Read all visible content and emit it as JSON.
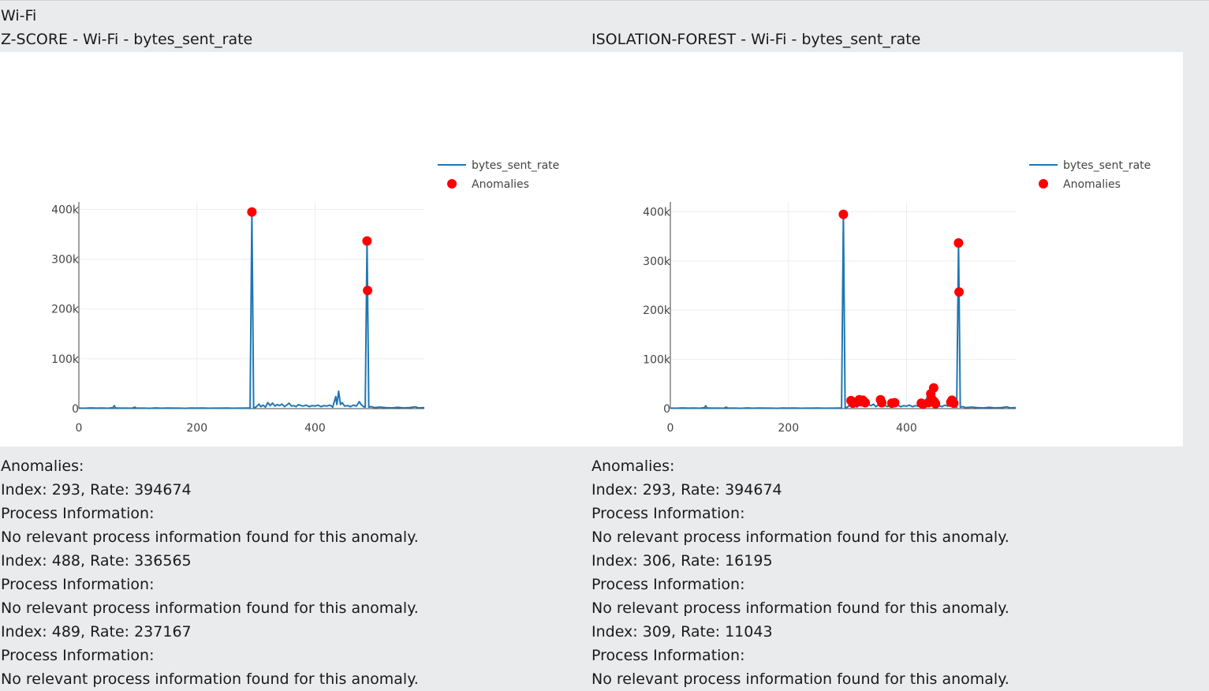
{
  "page": {
    "heading": "Wi-Fi"
  },
  "panels": [
    {
      "id": "zscore",
      "title": "Z-SCORE - Wi-Fi - bytes_sent_rate",
      "info": {
        "anomalies_label": "Anomalies:",
        "entries": [
          {
            "index_rate": "Index: 293, Rate: 394674",
            "process_label": "Process Information:",
            "process_text": "No relevant process information found for this anomaly."
          },
          {
            "index_rate": "Index: 488, Rate: 336565",
            "process_label": "Process Information:",
            "process_text": "No relevant process information found for this anomaly."
          },
          {
            "index_rate": "Index: 489, Rate: 237167",
            "process_label": "Process Information:",
            "process_text": "No relevant process information found for this anomaly."
          }
        ]
      }
    },
    {
      "id": "iforest",
      "title": "ISOLATION-FOREST - Wi-Fi - bytes_sent_rate",
      "info": {
        "anomalies_label": "Anomalies:",
        "entries": [
          {
            "index_rate": "Index: 293, Rate: 394674",
            "process_label": "Process Information:",
            "process_text": "No relevant process information found for this anomaly."
          },
          {
            "index_rate": "Index: 306, Rate: 16195",
            "process_label": "Process Information:",
            "process_text": "No relevant process information found for this anomaly."
          },
          {
            "index_rate": "Index: 309, Rate: 11043",
            "process_label": "Process Information:",
            "process_text": "No relevant process information found for this anomaly."
          }
        ]
      }
    }
  ],
  "chart_data": [
    {
      "type": "line",
      "xlim": [
        0,
        585
      ],
      "ylim": [
        0,
        415000
      ],
      "x_ticks": [
        0,
        200,
        400
      ],
      "x_tick_labels": [
        "0",
        "200",
        "400"
      ],
      "y_ticks": [
        0,
        100000,
        200000,
        300000,
        400000
      ],
      "y_tick_labels": [
        "0",
        "100k",
        "200k",
        "300k",
        "400k"
      ],
      "grid": true,
      "legend_position": "right-top",
      "series": [
        {
          "name": "bytes_sent_rate",
          "type": "line",
          "color": "#1f77b4",
          "points": [
            [
              0,
              1000
            ],
            [
              10,
              800
            ],
            [
              20,
              1500
            ],
            [
              30,
              900
            ],
            [
              40,
              1200
            ],
            [
              50,
              800
            ],
            [
              58,
              2000
            ],
            [
              60,
              6000
            ],
            [
              62,
              1500
            ],
            [
              70,
              900
            ],
            [
              80,
              1000
            ],
            [
              90,
              800
            ],
            [
              95,
              3000
            ],
            [
              97,
              900
            ],
            [
              110,
              1000
            ],
            [
              120,
              700
            ],
            [
              130,
              1500
            ],
            [
              140,
              800
            ],
            [
              150,
              1200
            ],
            [
              160,
              900
            ],
            [
              170,
              1000
            ],
            [
              180,
              700
            ],
            [
              190,
              1100
            ],
            [
              200,
              900
            ],
            [
              210,
              1300
            ],
            [
              220,
              800
            ],
            [
              230,
              1000
            ],
            [
              240,
              900
            ],
            [
              250,
              1200
            ],
            [
              260,
              800
            ],
            [
              270,
              1000
            ],
            [
              280,
              900
            ],
            [
              290,
              1500
            ],
            [
              293,
              394674
            ],
            [
              296,
              1500
            ],
            [
              300,
              3000
            ],
            [
              305,
              9000
            ],
            [
              308,
              4000
            ],
            [
              312,
              7000
            ],
            [
              316,
              3000
            ],
            [
              320,
              12000
            ],
            [
              324,
              6000
            ],
            [
              328,
              11000
            ],
            [
              332,
              5000
            ],
            [
              336,
              8000
            ],
            [
              340,
              6000
            ],
            [
              344,
              9000
            ],
            [
              348,
              4000
            ],
            [
              352,
              7000
            ],
            [
              356,
              11000
            ],
            [
              360,
              5000
            ],
            [
              364,
              6000
            ],
            [
              368,
              4000
            ],
            [
              372,
              8000
            ],
            [
              376,
              6000
            ],
            [
              380,
              5000
            ],
            [
              385,
              7000
            ],
            [
              390,
              4000
            ],
            [
              395,
              6000
            ],
            [
              400,
              5000
            ],
            [
              405,
              7000
            ],
            [
              410,
              4000
            ],
            [
              415,
              6000
            ],
            [
              420,
              5000
            ],
            [
              425,
              7000
            ],
            [
              430,
              3000
            ],
            [
              435,
              24000
            ],
            [
              437,
              8000
            ],
            [
              440,
              35000
            ],
            [
              443,
              8000
            ],
            [
              446,
              12000
            ],
            [
              450,
              5000
            ],
            [
              455,
              6000
            ],
            [
              460,
              4000
            ],
            [
              465,
              7000
            ],
            [
              470,
              5000
            ],
            [
              475,
              14000
            ],
            [
              478,
              8000
            ],
            [
              482,
              4000
            ],
            [
              485,
              3000
            ],
            [
              488,
              336565
            ],
            [
              489,
              237167
            ],
            [
              491,
              3000
            ],
            [
              495,
              4000
            ],
            [
              500,
              2000
            ],
            [
              510,
              3000
            ],
            [
              520,
              2000
            ],
            [
              530,
              1500
            ],
            [
              540,
              2500
            ],
            [
              550,
              1500
            ],
            [
              560,
              2000
            ],
            [
              570,
              3500
            ],
            [
              575,
              1500
            ],
            [
              585,
              2000
            ]
          ]
        },
        {
          "name": "Anomalies",
          "type": "scatter",
          "color": "#ff0000",
          "points": [
            [
              293,
              394674
            ],
            [
              488,
              336565
            ],
            [
              489,
              237167
            ]
          ]
        }
      ]
    },
    {
      "type": "line",
      "xlim": [
        0,
        585
      ],
      "ylim": [
        0,
        420000
      ],
      "x_ticks": [
        0,
        200,
        400
      ],
      "x_tick_labels": [
        "0",
        "200",
        "400"
      ],
      "y_ticks": [
        0,
        100000,
        200000,
        300000,
        400000
      ],
      "y_tick_labels": [
        "0",
        "100k",
        "200k",
        "300k",
        "400k"
      ],
      "grid": true,
      "legend_position": "right-top",
      "series": [
        {
          "name": "bytes_sent_rate",
          "type": "line",
          "color": "#1f77b4",
          "points": [
            [
              0,
              1000
            ],
            [
              10,
              800
            ],
            [
              20,
              1500
            ],
            [
              30,
              900
            ],
            [
              40,
              1200
            ],
            [
              50,
              800
            ],
            [
              58,
              2000
            ],
            [
              60,
              6000
            ],
            [
              62,
              1500
            ],
            [
              70,
              900
            ],
            [
              80,
              1000
            ],
            [
              90,
              800
            ],
            [
              95,
              3000
            ],
            [
              97,
              900
            ],
            [
              110,
              1000
            ],
            [
              120,
              700
            ],
            [
              130,
              1500
            ],
            [
              140,
              800
            ],
            [
              150,
              1200
            ],
            [
              160,
              900
            ],
            [
              170,
              1000
            ],
            [
              180,
              700
            ],
            [
              190,
              1100
            ],
            [
              200,
              900
            ],
            [
              210,
              1300
            ],
            [
              220,
              800
            ],
            [
              230,
              1000
            ],
            [
              240,
              900
            ],
            [
              250,
              1200
            ],
            [
              260,
              800
            ],
            [
              270,
              1000
            ],
            [
              280,
              900
            ],
            [
              290,
              1500
            ],
            [
              293,
              394674
            ],
            [
              296,
              1500
            ],
            [
              300,
              3000
            ],
            [
              305,
              9000
            ],
            [
              308,
              4000
            ],
            [
              312,
              7000
            ],
            [
              316,
              3000
            ],
            [
              320,
              12000
            ],
            [
              324,
              6000
            ],
            [
              328,
              11000
            ],
            [
              332,
              5000
            ],
            [
              336,
              8000
            ],
            [
              340,
              6000
            ],
            [
              344,
              9000
            ],
            [
              348,
              4000
            ],
            [
              352,
              7000
            ],
            [
              356,
              11000
            ],
            [
              360,
              5000
            ],
            [
              364,
              6000
            ],
            [
              368,
              4000
            ],
            [
              372,
              8000
            ],
            [
              376,
              6000
            ],
            [
              380,
              5000
            ],
            [
              385,
              7000
            ],
            [
              390,
              4000
            ],
            [
              395,
              6000
            ],
            [
              400,
              5000
            ],
            [
              405,
              7000
            ],
            [
              410,
              4000
            ],
            [
              415,
              6000
            ],
            [
              420,
              5000
            ],
            [
              425,
              7000
            ],
            [
              430,
              3000
            ],
            [
              435,
              24000
            ],
            [
              437,
              8000
            ],
            [
              440,
              35000
            ],
            [
              443,
              8000
            ],
            [
              446,
              12000
            ],
            [
              450,
              5000
            ],
            [
              455,
              6000
            ],
            [
              460,
              4000
            ],
            [
              465,
              7000
            ],
            [
              470,
              5000
            ],
            [
              475,
              14000
            ],
            [
              478,
              8000
            ],
            [
              482,
              4000
            ],
            [
              485,
              3000
            ],
            [
              488,
              336565
            ],
            [
              489,
              237167
            ],
            [
              491,
              3000
            ],
            [
              495,
              4000
            ],
            [
              500,
              2000
            ],
            [
              510,
              3000
            ],
            [
              520,
              2000
            ],
            [
              530,
              1500
            ],
            [
              540,
              2500
            ],
            [
              550,
              1500
            ],
            [
              560,
              2000
            ],
            [
              570,
              3500
            ],
            [
              575,
              1500
            ],
            [
              585,
              2000
            ]
          ]
        },
        {
          "name": "Anomalies",
          "type": "scatter",
          "color": "#ff0000",
          "points": [
            [
              293,
              394674
            ],
            [
              306,
              16195
            ],
            [
              309,
              11043
            ],
            [
              316,
              13000
            ],
            [
              320,
              18000
            ],
            [
              323,
              14000
            ],
            [
              326,
              17000
            ],
            [
              330,
              12000
            ],
            [
              356,
              18000
            ],
            [
              358,
              12000
            ],
            [
              375,
              11000
            ],
            [
              380,
              12000
            ],
            [
              425,
              11000
            ],
            [
              428,
              9000
            ],
            [
              437,
              12000
            ],
            [
              441,
              30000
            ],
            [
              443,
              19000
            ],
            [
              446,
              42000
            ],
            [
              447,
              14000
            ],
            [
              449,
              10000
            ],
            [
              475,
              13000
            ],
            [
              477,
              17000
            ],
            [
              480,
              11000
            ],
            [
              488,
              336565
            ],
            [
              489,
              237167
            ]
          ]
        }
      ]
    }
  ]
}
